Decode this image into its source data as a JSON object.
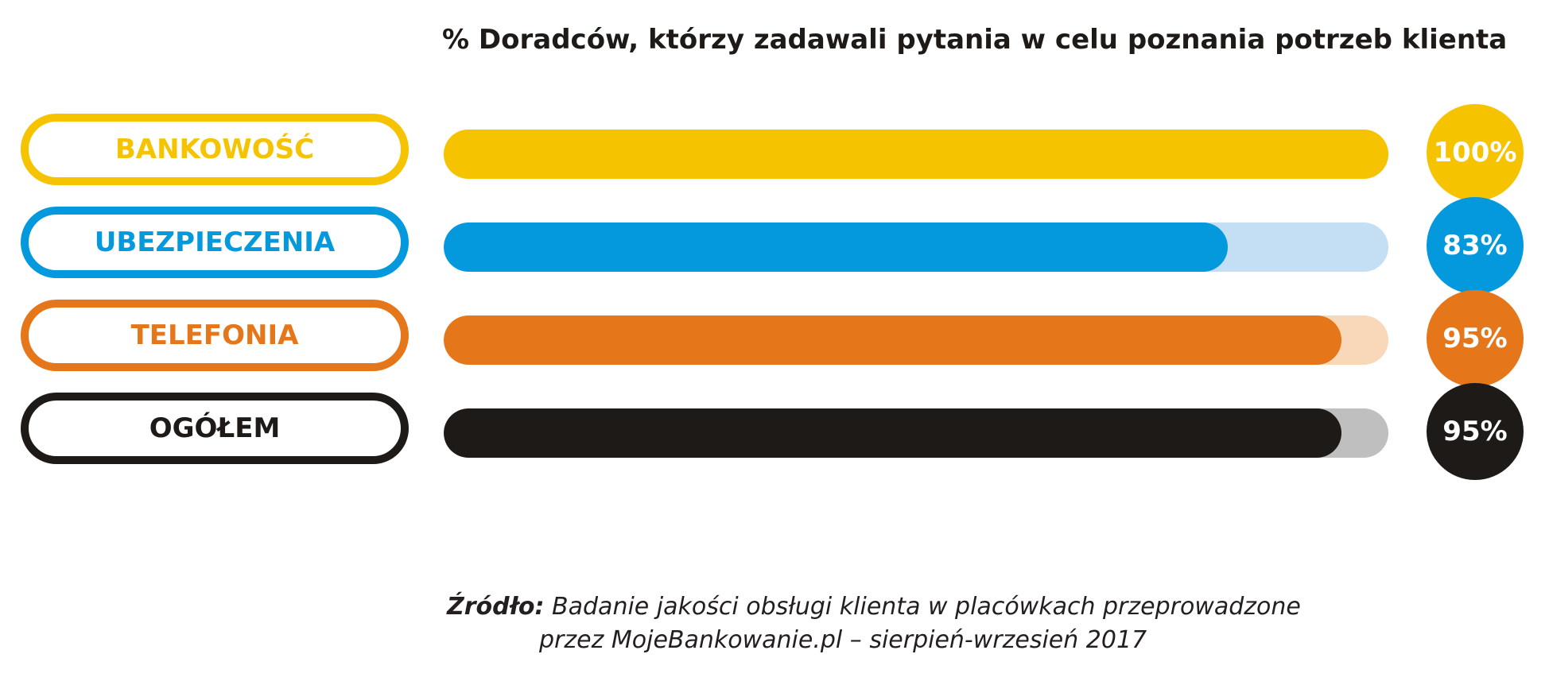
{
  "chart_data": {
    "type": "bar",
    "title": "% Doradców, którzy zadawali pytania w celu poznania potrzeb klienta",
    "orientation": "horizontal",
    "xlim": [
      0,
      100
    ],
    "categories": [
      "BANKOWOŚĆ",
      "UBEZPIECZENIA",
      "TELEFONIA",
      "OGÓŁEM"
    ],
    "values": [
      100,
      83,
      95,
      95
    ],
    "value_labels": [
      "100%",
      "83%",
      "95%",
      "95%"
    ],
    "colors": [
      "#f6c300",
      "#0399dc",
      "#e57619",
      "#1e1a18"
    ],
    "track_colors": [
      "#f6c300",
      "#c4def3",
      "#f9d8b9",
      "#bfbfbf"
    ]
  },
  "source": {
    "label": "Źródło:",
    "line1": "Badanie jakości obsługi klienta w placówkach przeprowadzone",
    "line2": "przez MojeBankowanie.pl – sierpień-wrzesień 2017"
  }
}
